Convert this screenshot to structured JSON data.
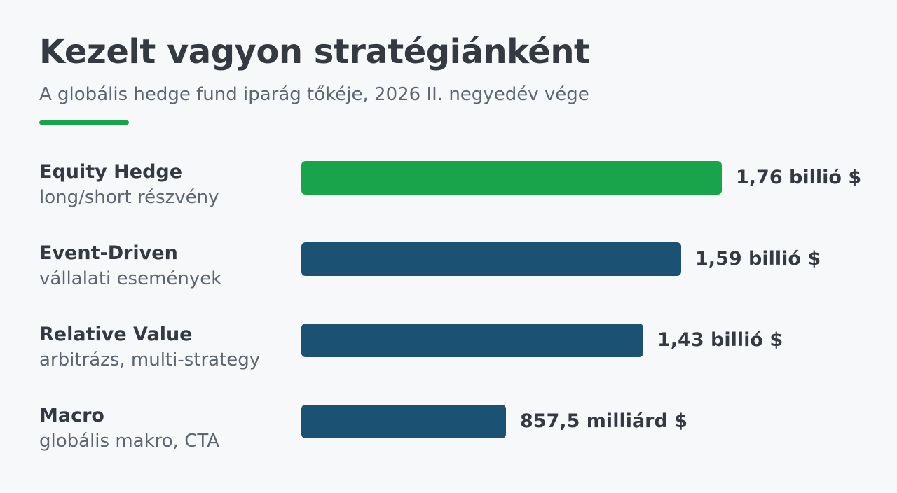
{
  "header": {
    "title": "Kezelt vagyon stratégiánként",
    "subtitle": "A globális hedge fund iparág tőkéje, 2026 II. negyedév vége"
  },
  "colors": {
    "accent": "#19a34a",
    "bar": "#1b5173",
    "highlight": "#19a34a",
    "background": "#f6f8fa"
  },
  "chart_data": {
    "type": "bar",
    "orientation": "horizontal",
    "title": "Kezelt vagyon stratégiánként",
    "subtitle": "A globális hedge fund iparág tőkéje, 2026 II. negyedév vége",
    "unit": "milliárd $",
    "grid": false,
    "legend": "none",
    "xlim": [
      0,
      1760
    ],
    "categories": [
      "Equity Hedge",
      "Event-Driven",
      "Relative Value",
      "Macro"
    ],
    "descriptions": [
      "long/short részvény",
      "vállalati események",
      "arbitrázs, multi-strategy",
      "globális makro, CTA"
    ],
    "values": [
      1760,
      1590,
      1430,
      857.5
    ],
    "value_labels": [
      "1,76 billió $",
      "1,59 billió $",
      "1,43 billió $",
      "857,5 milliárd $"
    ],
    "highlight_index": 0
  }
}
